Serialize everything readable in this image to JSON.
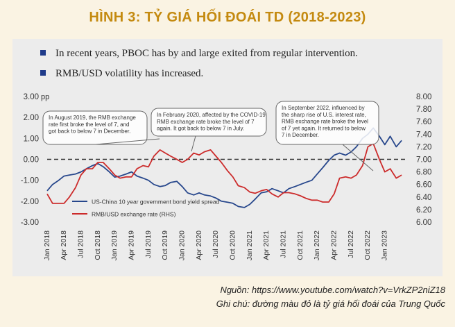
{
  "page": {
    "title": "HÌNH 3: TỶ GIÁ HỐI ĐOÁI TD (2018-2023)",
    "bullets": [
      "In recent years, PBOC has by and large exited from regular intervention.",
      "RMB/USD volatility has increased."
    ],
    "source_line": "Nguồn: https://www.youtube.com/watch?v=VrkZP2niZ18",
    "note_line": "Ghi chú: đường màu đỏ là tỷ giá hối đoái của Trung Quốc"
  },
  "chart_data": {
    "type": "line",
    "left_axis": {
      "unit": "pp",
      "ticks": [
        "3.00",
        "2.00",
        "1.00",
        "0.00",
        "-1.00",
        "-2.00",
        "-3.00"
      ],
      "ylim": [
        -3,
        3
      ]
    },
    "right_axis": {
      "ticks": [
        "8.00",
        "7.80",
        "7.60",
        "7.40",
        "7.20",
        "7.00",
        "6.80",
        "6.60",
        "6.40",
        "6.20",
        "6.00"
      ],
      "ylim": [
        6.0,
        8.0
      ]
    },
    "x_ticks": [
      "Jan 2018",
      "Apr 2018",
      "Jul 2018",
      "Oct 2018",
      "Jan 2019",
      "Apr 2019",
      "Jul 2019",
      "Oct 2019",
      "Jan 2020",
      "Apr 2020",
      "Jul 2020",
      "Oct 2020",
      "Jan 2021",
      "Apr 2021",
      "Jul 2021",
      "Oct 2021",
      "Jan 2022",
      "Apr 2022",
      "Jul 2022",
      "Oct 2022",
      "Jan 2023"
    ],
    "xlim": [
      2018.0,
      2023.3
    ],
    "colors": {
      "bond_spread": "#27478c",
      "rmb_usd": "#cc2b2b",
      "grid": "#555555",
      "reference": "#333333"
    },
    "series": [
      {
        "name": "US-China 10 year government bond yield spread",
        "axis": "left",
        "x": [
          2018.0,
          2018.08,
          2018.17,
          2018.25,
          2018.33,
          2018.42,
          2018.5,
          2018.58,
          2018.67,
          2018.75,
          2018.83,
          2018.92,
          2019.0,
          2019.08,
          2019.17,
          2019.25,
          2019.33,
          2019.42,
          2019.5,
          2019.58,
          2019.67,
          2019.75,
          2019.83,
          2019.92,
          2020.0,
          2020.08,
          2020.17,
          2020.25,
          2020.33,
          2020.42,
          2020.5,
          2020.58,
          2020.67,
          2020.75,
          2020.83,
          2020.92,
          2021.0,
          2021.08,
          2021.17,
          2021.25,
          2021.33,
          2021.42,
          2021.5,
          2021.58,
          2021.67,
          2021.75,
          2021.83,
          2021.92,
          2022.0,
          2022.08,
          2022.17,
          2022.25,
          2022.33,
          2022.42,
          2022.5,
          2022.58,
          2022.67,
          2022.75,
          2022.83,
          2022.92,
          2023.0,
          2023.08,
          2023.17,
          2023.25
        ],
        "values": [
          -1.5,
          -1.2,
          -1.0,
          -0.8,
          -0.75,
          -0.7,
          -0.6,
          -0.45,
          -0.3,
          -0.2,
          -0.35,
          -0.6,
          -0.85,
          -0.8,
          -0.7,
          -0.6,
          -0.8,
          -0.9,
          -1.0,
          -1.2,
          -1.3,
          -1.25,
          -1.1,
          -1.05,
          -1.3,
          -1.6,
          -1.7,
          -1.6,
          -1.7,
          -1.75,
          -1.85,
          -2.0,
          -2.05,
          -2.1,
          -2.25,
          -2.3,
          -2.15,
          -1.9,
          -1.6,
          -1.55,
          -1.4,
          -1.5,
          -1.6,
          -1.4,
          -1.3,
          -1.2,
          -1.1,
          -1.0,
          -0.7,
          -0.4,
          -0.05,
          0.2,
          0.3,
          0.2,
          0.35,
          0.6,
          1.0,
          1.2,
          1.5,
          1.1,
          0.7,
          1.1,
          0.6,
          0.9
        ]
      },
      {
        "name": "RMB/USD exchange rate (RHS)",
        "axis": "right",
        "x": [
          2018.0,
          2018.08,
          2018.17,
          2018.25,
          2018.33,
          2018.42,
          2018.5,
          2018.58,
          2018.67,
          2018.75,
          2018.83,
          2018.92,
          2019.0,
          2019.08,
          2019.17,
          2019.25,
          2019.33,
          2019.42,
          2019.5,
          2019.58,
          2019.67,
          2019.75,
          2019.83,
          2019.92,
          2020.0,
          2020.08,
          2020.17,
          2020.25,
          2020.33,
          2020.42,
          2020.5,
          2020.58,
          2020.67,
          2020.75,
          2020.83,
          2020.92,
          2021.0,
          2021.08,
          2021.17,
          2021.25,
          2021.33,
          2021.42,
          2021.5,
          2021.58,
          2021.67,
          2021.75,
          2021.83,
          2021.92,
          2022.0,
          2022.08,
          2022.17,
          2022.25,
          2022.33,
          2022.42,
          2022.5,
          2022.58,
          2022.67,
          2022.75,
          2022.83,
          2022.92,
          2023.0,
          2023.08,
          2023.17,
          2023.25
        ],
        "values": [
          6.45,
          6.3,
          6.3,
          6.3,
          6.4,
          6.55,
          6.75,
          6.85,
          6.85,
          6.95,
          6.95,
          6.85,
          6.75,
          6.7,
          6.72,
          6.72,
          6.85,
          6.9,
          6.88,
          7.05,
          7.15,
          7.1,
          7.05,
          7.0,
          6.95,
          7.0,
          7.1,
          7.07,
          7.12,
          7.15,
          7.05,
          6.95,
          6.82,
          6.72,
          6.58,
          6.55,
          6.48,
          6.46,
          6.5,
          6.52,
          6.45,
          6.4,
          6.47,
          6.47,
          6.45,
          6.42,
          6.38,
          6.35,
          6.35,
          6.32,
          6.32,
          6.45,
          6.7,
          6.72,
          6.7,
          6.75,
          6.9,
          7.2,
          7.25,
          7.0,
          6.8,
          6.85,
          6.7,
          6.75
        ]
      }
    ],
    "reference_line": {
      "left_value": 0.0,
      "right_value": 7.0,
      "style": "dashed"
    },
    "legend": {
      "position": "bottom-left",
      "entries": [
        "US-China 10 year government bond yield spread",
        "RMB/USD exchange rate (RHS)"
      ]
    },
    "annotations": [
      {
        "text_lines": [
          "In August 2019, the RMB exchange",
          "rate first broke the level of 7, and",
          "got back to below 7 in December."
        ],
        "at_x": 2019.6
      },
      {
        "text_lines": [
          "In February 2020, affected by the COVID-19",
          "RMB exchange rate broke the level of 7",
          "again. It got back to below 7 in July."
        ],
        "at_x": 2020.1
      },
      {
        "text_lines": [
          "In September 2022, influenced by",
          "the sharp rise of U.S. interest rate,",
          "RMB exchange rate broke the level",
          "of 7 yet again. It returned to below",
          "7 in December."
        ],
        "at_x": 2022.7
      }
    ]
  }
}
